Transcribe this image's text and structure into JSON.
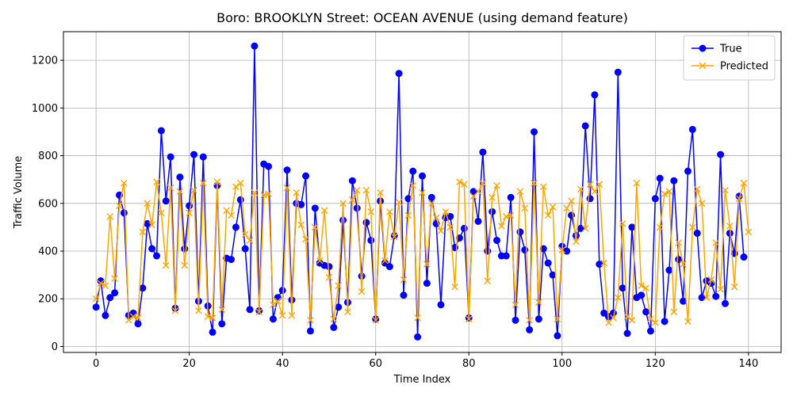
{
  "chart_data": {
    "type": "line",
    "title": "Boro: BROOKLYN Street: OCEAN AVENUE (using demand feature)",
    "xlabel": "Time Index",
    "ylabel": "Traffic Volume",
    "xlim": [
      -7,
      147
    ],
    "ylim": [
      -25,
      1320
    ],
    "xticks": [
      0,
      20,
      40,
      60,
      80,
      100,
      120,
      140
    ],
    "yticks": [
      0,
      200,
      400,
      600,
      800,
      1000,
      1200
    ],
    "grid": true,
    "legend_position": "top-right",
    "series": [
      {
        "name": "True",
        "color": "#0000ff",
        "marker": "circle",
        "values": [
          165,
          275,
          130,
          205,
          225,
          635,
          560,
          130,
          140,
          95,
          245,
          515,
          410,
          380,
          905,
          610,
          795,
          160,
          710,
          410,
          590,
          805,
          190,
          795,
          170,
          60,
          675,
          95,
          370,
          365,
          500,
          615,
          410,
          155,
          1260,
          150,
          765,
          755,
          115,
          205,
          235,
          740,
          195,
          600,
          595,
          715,
          65,
          580,
          350,
          340,
          335,
          80,
          165,
          530,
          185,
          695,
          580,
          295,
          520,
          445,
          115,
          610,
          350,
          335,
          465,
          1145,
          215,
          620,
          735,
          40,
          715,
          265,
          625,
          515,
          175,
          540,
          545,
          415,
          455,
          495,
          120,
          650,
          525,
          815,
          400,
          565,
          445,
          380,
          380,
          625,
          110,
          480,
          405,
          70,
          900,
          115,
          410,
          350,
          300,
          45,
          420,
          400,
          550,
          465,
          495,
          925,
          620,
          1055,
          345,
          140,
          125,
          140,
          1150,
          245,
          55,
          500,
          205,
          215,
          145,
          65,
          620,
          705,
          105,
          320,
          695,
          365,
          190,
          735,
          910,
          475,
          205,
          275,
          265,
          210,
          805,
          180,
          475,
          390,
          630,
          375
        ]
      },
      {
        "name": "Predicted",
        "color": "#ffa500",
        "marker": "x",
        "values": [
          200,
          265,
          255,
          545,
          285,
          590,
          685,
          110,
          125,
          120,
          480,
          600,
          510,
          690,
          560,
          340,
          665,
          150,
          650,
          340,
          560,
          655,
          150,
          685,
          125,
          120,
          690,
          155,
          570,
          550,
          670,
          685,
          470,
          445,
          645,
          145,
          635,
          640,
          175,
          190,
          130,
          665,
          130,
          645,
          510,
          450,
          110,
          500,
          360,
          570,
          290,
          115,
          255,
          600,
          145,
          615,
          655,
          230,
          655,
          565,
          110,
          645,
          360,
          565,
          460,
          605,
          280,
          550,
          675,
          120,
          645,
          345,
          600,
          540,
          485,
          565,
          500,
          250,
          690,
          680,
          115,
          630,
          650,
          685,
          275,
          625,
          675,
          505,
          545,
          550,
          175,
          650,
          580,
          110,
          685,
          185,
          670,
          550,
          585,
          115,
          405,
          580,
          610,
          440,
          660,
          495,
          680,
          650,
          680,
          350,
          100,
          120,
          205,
          515,
          125,
          110,
          685,
          255,
          245,
          115,
          100,
          500,
          640,
          650,
          145,
          435,
          345,
          105,
          500,
          660,
          600,
          205,
          280,
          435,
          240,
          655,
          505,
          250,
          620,
          685,
          480
        ]
      }
    ]
  }
}
